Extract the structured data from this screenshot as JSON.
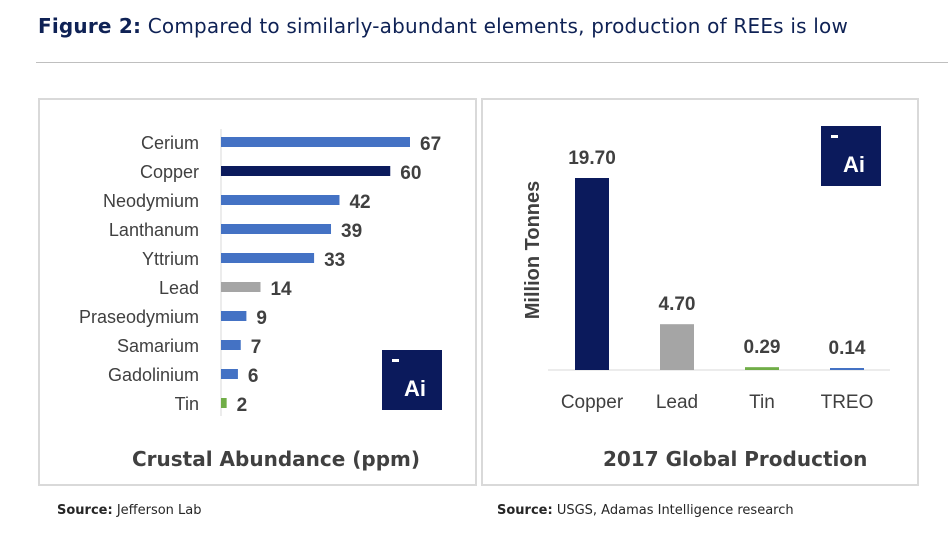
{
  "header": {
    "figure_label": "Figure 2:",
    "title": "Compared to similarly-abundant elements, production of REEs is low"
  },
  "logo_text": "Ai",
  "colors": {
    "blue": "#4472c4",
    "navy": "#0b1a5c",
    "grey": "#a5a5a5",
    "green": "#70ad47",
    "title": "#0f2255"
  },
  "chart_data": [
    {
      "type": "bar",
      "orientation": "horizontal",
      "title": "Crustal Abundance (ppm)",
      "categories": [
        "Cerium",
        "Copper",
        "Neodymium",
        "Lanthanum",
        "Yttrium",
        "Lead",
        "Praseodymium",
        "Samarium",
        "Gadolinium",
        "Tin"
      ],
      "values": [
        67,
        60,
        42,
        39,
        33,
        14,
        9,
        7,
        6,
        2
      ],
      "bar_colors": [
        "blue",
        "navy",
        "blue",
        "blue",
        "blue",
        "grey",
        "blue",
        "blue",
        "blue",
        "green"
      ],
      "xlabel": "",
      "ylabel": "",
      "xlim": [
        0,
        67
      ]
    },
    {
      "type": "bar",
      "title": "2017 Global Production",
      "categories": [
        "Copper",
        "Lead",
        "Tin",
        "TREO"
      ],
      "values": [
        19.7,
        4.7,
        0.29,
        0.14
      ],
      "labels": [
        "19.70",
        "4.70",
        "0.29",
        "0.14"
      ],
      "bar_colors": [
        "navy",
        "grey",
        "green",
        "blue"
      ],
      "xlabel": "",
      "ylabel": "Million Tonnes",
      "ylim": [
        0,
        20
      ]
    }
  ],
  "sources": [
    {
      "label": "Source:",
      "text": "Jefferson Lab"
    },
    {
      "label": "Source:",
      "text": "USGS, Adamas Intelligence research"
    }
  ]
}
